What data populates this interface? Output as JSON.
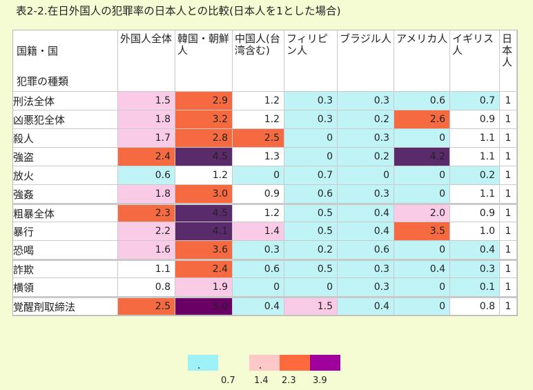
{
  "title": "表2-2.在日外国人の犯罪率の日本人との比較(日本人を1とした場合)",
  "chart_data": {
    "type": "table",
    "title": "表2-2.在日外国人の犯罪率の日本人との比較(日本人を1とした場合)",
    "corner": {
      "line1": "国籍・国",
      "line2": "犯罪の種類"
    },
    "columns": [
      {
        "label": "外国人全体"
      },
      {
        "label": "韓国・朝鮮人"
      },
      {
        "label": "中国人(台湾含む)"
      },
      {
        "label": "フィリピン人"
      },
      {
        "label": "ブラジル人"
      },
      {
        "label": "アメリカ人"
      },
      {
        "label": "イギリス人"
      },
      {
        "label": "日本人"
      }
    ],
    "rows": [
      {
        "label": "刑法全体",
        "level": 1,
        "values": [
          "1.5",
          "2.9",
          "1.2",
          "0.3",
          "0.3",
          "0.6",
          "0.7",
          "1"
        ]
      },
      {
        "label": "凶悪犯全体",
        "level": 2,
        "values": [
          "1.8",
          "3.2",
          "1.2",
          "0.3",
          "0.2",
          "2.6",
          "0.9",
          "1"
        ]
      },
      {
        "label": "殺人",
        "level": 3,
        "values": [
          "1.7",
          "2.8",
          "2.5",
          "0",
          "0.3",
          "0",
          "1.1",
          "1"
        ]
      },
      {
        "label": "強盗",
        "level": 3,
        "values": [
          "2.4",
          "4.5",
          "1.3",
          "0",
          "0.2",
          "4.2",
          "1.1",
          "1"
        ]
      },
      {
        "label": "放火",
        "level": 3,
        "values": [
          "0.6",
          "1.2",
          "0",
          "0.7",
          "0",
          "0",
          "0.2",
          "1"
        ]
      },
      {
        "label": "強姦",
        "level": 3,
        "values": [
          "1.8",
          "3.0",
          "0.9",
          "0.6",
          "0.3",
          "0",
          "1.1",
          "1"
        ]
      },
      {
        "label": "粗暴全体",
        "level": 2,
        "gap": true,
        "values": [
          "2.3",
          "4.5",
          "1.2",
          "0.5",
          "0.4",
          "2.0",
          "0.9",
          "1"
        ]
      },
      {
        "label": "暴行",
        "level": 3,
        "values": [
          "2.2",
          "4.1",
          "1.4",
          "0.5",
          "0.4",
          "3.5",
          "1.0",
          "1"
        ]
      },
      {
        "label": "恐喝",
        "level": 3,
        "values": [
          "1.6",
          "3.6",
          "0.3",
          "0.2",
          "0.6",
          "0",
          "0.4",
          "1"
        ]
      },
      {
        "label": "詐欺",
        "level": 2,
        "gap": true,
        "values": [
          "1.1",
          "2.4",
          "0.6",
          "0.5",
          "0.3",
          "0.4",
          "0.3",
          "1"
        ]
      },
      {
        "label": "横領",
        "level": 2,
        "values": [
          "0.8",
          "1.9",
          "0",
          "0",
          "0.3",
          "0",
          "0.1",
          "1"
        ]
      },
      {
        "label": "覚醒剤取締法",
        "level": 1,
        "gap": true,
        "values": [
          "2.5",
          "5.0",
          "0.4",
          "1.5",
          "0.4",
          "0",
          "0.8",
          "1"
        ]
      }
    ],
    "thresholds": [
      "0.7",
      "1.4",
      "2.3",
      "3.9"
    ],
    "colors": {
      "light_blue": "#bff3f5",
      "white": "#ffffff",
      "pink": "#f9cbe6",
      "orange": "#f56a40",
      "purple": "#5a2b6a",
      "dark_purple": "#6a0066"
    },
    "legend_colors": [
      "#9df2f7",
      "#ffc8c8",
      "#ff6a3c",
      "#a0009c"
    ]
  }
}
